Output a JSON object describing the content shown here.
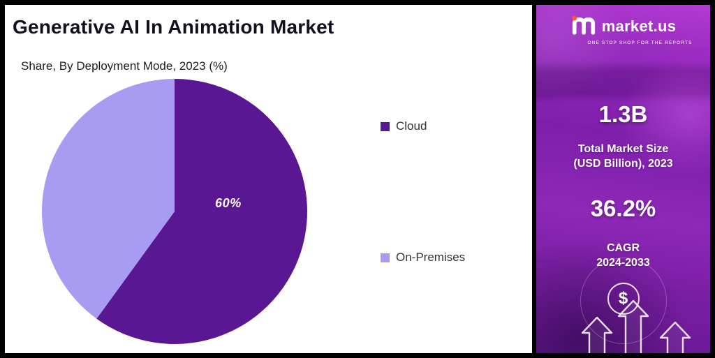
{
  "title": "Generative AI In Animation Market",
  "subtitle": "Share, By Deployment Mode, 2023 (%)",
  "chart_data": {
    "type": "pie",
    "title": "Share, By Deployment Mode, 2023 (%)",
    "categories": [
      "Cloud",
      "On-Premises"
    ],
    "labels": [
      "Cloud",
      "On-Premises"
    ],
    "values": [
      60,
      40
    ],
    "unit": "%",
    "colors": [
      "#5a1794",
      "#a79bf2"
    ],
    "data_labels": [
      "60%",
      ""
    ],
    "start_angle_deg": 0,
    "direction": "clockwise",
    "legend_position": "right"
  },
  "sidebar": {
    "brand": {
      "name": "market.us",
      "tagline": "ONE STOP SHOP FOR THE REPORTS",
      "dot_color": "#ff5a26"
    },
    "market_size": {
      "value": "1.3B",
      "label_line1": "Total Market Size",
      "label_line2": "(USD Billion), 2023"
    },
    "cagr": {
      "value": "36.2%",
      "label_line1": "CAGR",
      "label_line2": "2024-2033"
    },
    "dollar_symbol": "$"
  },
  "colors": {
    "slice_cloud": "#5a1794",
    "slice_on_premises": "#a79bf2",
    "sidebar_purple": "#8d28b8",
    "frame": "#000000"
  }
}
